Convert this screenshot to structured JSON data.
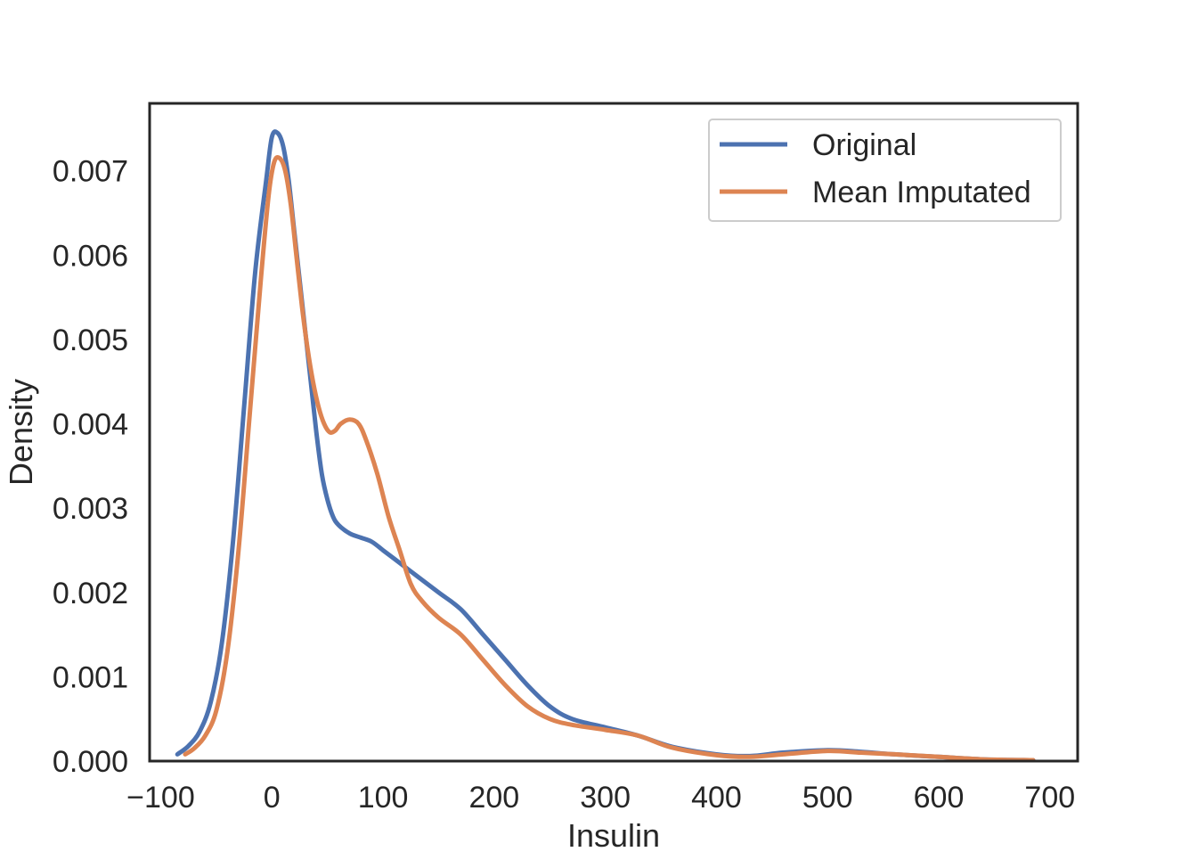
{
  "chart_data": {
    "type": "line",
    "title": "",
    "xlabel": "Insulin",
    "ylabel": "Density",
    "xlim": [
      -110,
      725
    ],
    "ylim": [
      0,
      0.0078
    ],
    "xticks": [
      -100,
      0,
      100,
      200,
      300,
      400,
      500,
      600,
      700
    ],
    "xtick_labels": [
      "−100",
      "0",
      "100",
      "200",
      "300",
      "400",
      "500",
      "600",
      "700"
    ],
    "yticks": [
      0,
      0.001,
      0.002,
      0.003,
      0.004,
      0.005,
      0.006,
      0.007
    ],
    "ytick_labels": [
      "0.000",
      "0.001",
      "0.002",
      "0.003",
      "0.004",
      "0.005",
      "0.006",
      "0.007"
    ],
    "grid": false,
    "legend_position": "top-right",
    "series": [
      {
        "name": "Original",
        "color": "#4c72b0",
        "x": [
          -85,
          -75,
          -65,
          -55,
          -45,
          -35,
          -25,
          -15,
          -5,
          0,
          5,
          10,
          15,
          20,
          25,
          30,
          35,
          40,
          45,
          50,
          55,
          60,
          70,
          80,
          90,
          100,
          110,
          120,
          130,
          150,
          170,
          190,
          210,
          230,
          250,
          270,
          300,
          330,
          360,
          400,
          430,
          460,
          500,
          530,
          560,
          600,
          640,
          685
        ],
        "y": [
          8e-05,
          0.00018,
          0.00035,
          0.0007,
          0.0014,
          0.0026,
          0.0042,
          0.0058,
          0.0069,
          0.0074,
          0.00745,
          0.0073,
          0.0069,
          0.0063,
          0.0057,
          0.0051,
          0.0045,
          0.0039,
          0.0034,
          0.0031,
          0.0029,
          0.0028,
          0.0027,
          0.00265,
          0.0026,
          0.0025,
          0.0024,
          0.0023,
          0.0022,
          0.002,
          0.0018,
          0.0015,
          0.0012,
          0.0009,
          0.00065,
          0.0005,
          0.0004,
          0.0003,
          0.00017,
          8e-05,
          6e-05,
          0.0001,
          0.00013,
          0.00011,
          8e-05,
          5e-05,
          2e-05,
          1e-05
        ]
      },
      {
        "name": "Mean Imputated",
        "color": "#dd8452",
        "x": [
          -78,
          -70,
          -60,
          -50,
          -40,
          -30,
          -20,
          -10,
          -3,
          2,
          7,
          12,
          17,
          22,
          27,
          32,
          37,
          42,
          47,
          52,
          57,
          62,
          70,
          78,
          85,
          95,
          105,
          115,
          125,
          135,
          150,
          170,
          190,
          210,
          230,
          250,
          270,
          300,
          330,
          360,
          400,
          430,
          460,
          500,
          530,
          560,
          600,
          640,
          685
        ],
        "y": [
          8e-05,
          0.00015,
          0.0003,
          0.0006,
          0.0013,
          0.0025,
          0.0041,
          0.0057,
          0.0067,
          0.0071,
          0.00715,
          0.007,
          0.0066,
          0.006,
          0.0054,
          0.0049,
          0.0045,
          0.0042,
          0.004,
          0.0039,
          0.00392,
          0.004,
          0.00405,
          0.004,
          0.0038,
          0.0034,
          0.0029,
          0.0025,
          0.0021,
          0.0019,
          0.0017,
          0.0015,
          0.0012,
          0.0009,
          0.00065,
          0.0005,
          0.00043,
          0.00037,
          0.0003,
          0.00016,
          7e-05,
          5e-05,
          8e-05,
          0.00012,
          0.0001,
          8e-05,
          5e-05,
          2e-05,
          1e-05
        ]
      }
    ]
  }
}
